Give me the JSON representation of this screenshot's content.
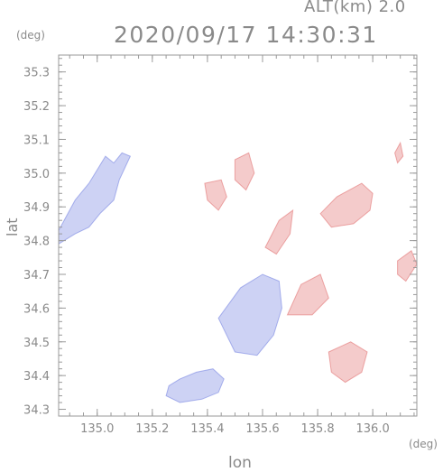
{
  "header": {
    "altitude_label": "ALT(km)  2.0",
    "timestamp": "2020/09/17 14:30:31"
  },
  "axes": {
    "x_label": "lon",
    "y_label": "lat",
    "x_unit": "(deg)",
    "y_unit": "(deg)"
  },
  "colors": {
    "axis": "#9a9a9a",
    "approach": "#6f7de0",
    "recede": "#e06a6a"
  },
  "chart_data": {
    "type": "heatmap",
    "title": "2020/09/17 14:30:31",
    "subtitle": "ALT(km)  2.0",
    "xlabel": "lon",
    "ylabel": "lat",
    "xlim": [
      134.86,
      136.16
    ],
    "ylim": [
      34.28,
      35.35
    ],
    "xticks": [
      135.0,
      135.2,
      135.4,
      135.6,
      135.8,
      136.0
    ],
    "xtick_labels": [
      "135.0",
      "135.2",
      "135.4",
      "135.6",
      "135.8",
      "136.0"
    ],
    "yticks": [
      34.3,
      34.4,
      34.5,
      34.6,
      34.7,
      34.8,
      34.9,
      35.0,
      35.1,
      35.2,
      35.3
    ],
    "ytick_labels": [
      "34.3",
      "34.4",
      "34.5",
      "34.6",
      "34.7",
      "34.8",
      "34.9",
      "35.0",
      "35.1",
      "35.2",
      "35.3"
    ],
    "grid": false,
    "regions": [
      {
        "name": "west-blue",
        "sign": "approach",
        "outline": [
          [
            134.86,
            34.83
          ],
          [
            134.92,
            34.92
          ],
          [
            134.97,
            34.97
          ],
          [
            135.03,
            35.05
          ],
          [
            135.06,
            35.03
          ],
          [
            135.09,
            35.06
          ],
          [
            135.12,
            35.05
          ],
          [
            135.08,
            34.98
          ],
          [
            135.06,
            34.92
          ],
          [
            135.01,
            34.88
          ],
          [
            134.97,
            34.84
          ],
          [
            134.92,
            34.82
          ],
          [
            134.86,
            34.79
          ]
        ]
      },
      {
        "name": "south-blue",
        "sign": "approach",
        "outline": [
          [
            135.25,
            34.34
          ],
          [
            135.3,
            34.32
          ],
          [
            135.38,
            34.33
          ],
          [
            135.44,
            34.35
          ],
          [
            135.46,
            34.39
          ],
          [
            135.42,
            34.42
          ],
          [
            135.36,
            34.41
          ],
          [
            135.3,
            34.39
          ],
          [
            135.26,
            34.37
          ]
        ]
      },
      {
        "name": "north-pink-a",
        "sign": "recede",
        "outline": [
          [
            135.39,
            34.97
          ],
          [
            135.45,
            34.98
          ],
          [
            135.47,
            34.93
          ],
          [
            135.44,
            34.89
          ],
          [
            135.4,
            34.92
          ]
        ]
      },
      {
        "name": "north-pink-b",
        "sign": "recede",
        "outline": [
          [
            135.5,
            35.04
          ],
          [
            135.55,
            35.06
          ],
          [
            135.57,
            35.0
          ],
          [
            135.54,
            34.95
          ],
          [
            135.5,
            34.98
          ]
        ]
      },
      {
        "name": "east-red",
        "sign": "recede",
        "outline": [
          [
            135.81,
            34.88
          ],
          [
            135.87,
            34.93
          ],
          [
            135.96,
            34.97
          ],
          [
            136.0,
            34.94
          ],
          [
            135.99,
            34.89
          ],
          [
            135.93,
            34.85
          ],
          [
            135.85,
            34.84
          ]
        ]
      },
      {
        "name": "east-edge-red",
        "sign": "recede",
        "outline": [
          [
            136.09,
            34.74
          ],
          [
            136.14,
            34.77
          ],
          [
            136.16,
            34.73
          ],
          [
            136.12,
            34.68
          ],
          [
            136.09,
            34.7
          ]
        ]
      },
      {
        "name": "southeast-red",
        "sign": "recede",
        "outline": [
          [
            135.84,
            34.47
          ],
          [
            135.92,
            34.5
          ],
          [
            135.98,
            34.47
          ],
          [
            135.96,
            34.41
          ],
          [
            135.9,
            34.38
          ],
          [
            135.85,
            34.41
          ]
        ]
      },
      {
        "name": "center-mixed",
        "sign": "approach",
        "outline": [
          [
            135.44,
            34.57
          ],
          [
            135.52,
            34.66
          ],
          [
            135.6,
            34.7
          ],
          [
            135.66,
            34.68
          ],
          [
            135.67,
            34.6
          ],
          [
            135.64,
            34.52
          ],
          [
            135.58,
            34.46
          ],
          [
            135.5,
            34.47
          ]
        ]
      },
      {
        "name": "center-east-mixed",
        "sign": "recede",
        "outline": [
          [
            135.69,
            34.58
          ],
          [
            135.74,
            34.67
          ],
          [
            135.81,
            34.7
          ],
          [
            135.84,
            34.63
          ],
          [
            135.78,
            34.58
          ]
        ]
      },
      {
        "name": "far-northeast-red",
        "sign": "recede",
        "outline": [
          [
            136.08,
            35.06
          ],
          [
            136.1,
            35.09
          ],
          [
            136.11,
            35.05
          ],
          [
            136.09,
            35.03
          ]
        ]
      },
      {
        "name": "northeast-strip",
        "sign": "recede",
        "outline": [
          [
            135.61,
            34.78
          ],
          [
            135.66,
            34.86
          ],
          [
            135.71,
            34.89
          ],
          [
            135.7,
            34.82
          ],
          [
            135.65,
            34.76
          ]
        ]
      }
    ]
  }
}
